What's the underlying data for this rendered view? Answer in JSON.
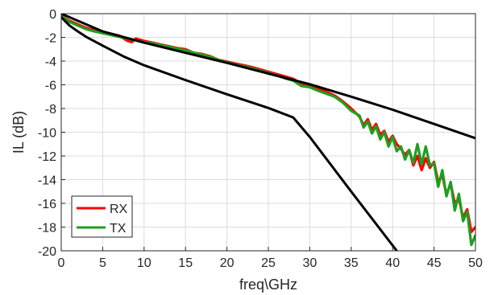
{
  "chart_data": {
    "type": "line",
    "xlabel": "freq\\GHz",
    "ylabel": "IL (dB)",
    "xlim": [
      0,
      50
    ],
    "ylim": [
      -20,
      0
    ],
    "xticks": [
      0,
      5,
      10,
      15,
      20,
      25,
      30,
      35,
      40,
      45,
      50
    ],
    "yticks": [
      0,
      -2,
      -4,
      -6,
      -8,
      -10,
      -12,
      -14,
      -16,
      -18,
      -20
    ],
    "grid": true,
    "legend_position": "bottom-left",
    "series": [
      {
        "name": "RX",
        "color": "#ff0000",
        "x": [
          0,
          1,
          2,
          3,
          4,
          5,
          6,
          7,
          8,
          8.5,
          9,
          10,
          11,
          12,
          13,
          14,
          15,
          16,
          17,
          18,
          19,
          20,
          21,
          22,
          23,
          24,
          25,
          26,
          27,
          28,
          29,
          30,
          31,
          32,
          33,
          34,
          35,
          36,
          36.5,
          37,
          37.5,
          38,
          38.5,
          39,
          39.5,
          40,
          40.5,
          41,
          41.5,
          42,
          42.5,
          43,
          43.5,
          44,
          44.5,
          45,
          45.5,
          46,
          46.5,
          47,
          47.5,
          48,
          48.5,
          49,
          49.5,
          50
        ],
        "values": [
          -0.2,
          -0.6,
          -0.9,
          -1.2,
          -1.4,
          -1.55,
          -1.7,
          -1.85,
          -2.3,
          -2.4,
          -2.1,
          -2.3,
          -2.45,
          -2.6,
          -2.75,
          -2.9,
          -3.0,
          -3.3,
          -3.4,
          -3.6,
          -3.9,
          -4.05,
          -4.2,
          -4.35,
          -4.5,
          -4.7,
          -4.9,
          -5.1,
          -5.3,
          -5.5,
          -5.9,
          -6.0,
          -6.3,
          -6.6,
          -6.9,
          -7.4,
          -8.0,
          -8.7,
          -9.4,
          -8.9,
          -9.8,
          -9.3,
          -10.2,
          -9.9,
          -10.8,
          -10.3,
          -11.0,
          -11.4,
          -11.9,
          -11.5,
          -12.8,
          -12.0,
          -13.2,
          -12.2,
          -13.0,
          -12.5,
          -14.2,
          -13.6,
          -15.3,
          -14.3,
          -16.0,
          -15.6,
          -17.2,
          -16.5,
          -18.4,
          -18.0
        ]
      },
      {
        "name": "TX",
        "color": "#1f9e1f",
        "x": [
          0,
          1,
          2,
          3,
          4,
          5,
          6,
          7,
          8,
          9,
          10,
          11,
          12,
          13,
          14,
          15,
          16,
          17,
          18,
          19,
          20,
          21,
          22,
          23,
          24,
          25,
          26,
          27,
          28,
          29,
          30,
          31,
          32,
          33,
          34,
          35,
          36,
          36.5,
          37,
          37.5,
          38,
          38.5,
          39,
          39.5,
          40,
          40.5,
          41,
          41.5,
          42,
          42.5,
          43,
          43.5,
          44,
          44.5,
          45,
          45.5,
          46,
          46.5,
          47,
          47.5,
          48,
          48.5,
          49,
          49.5,
          50
        ],
        "values": [
          -0.2,
          -0.7,
          -1.0,
          -1.3,
          -1.5,
          -1.65,
          -1.8,
          -1.95,
          -2.1,
          -2.25,
          -2.4,
          -2.5,
          -2.65,
          -2.8,
          -2.95,
          -3.1,
          -3.3,
          -3.45,
          -3.65,
          -3.9,
          -4.1,
          -4.3,
          -4.45,
          -4.6,
          -4.8,
          -5.0,
          -5.2,
          -5.45,
          -5.65,
          -6.1,
          -6.2,
          -6.5,
          -6.75,
          -7.0,
          -7.5,
          -8.2,
          -8.6,
          -9.6,
          -9.1,
          -10.1,
          -9.5,
          -10.6,
          -10.0,
          -11.2,
          -10.4,
          -11.6,
          -11.2,
          -12.3,
          -11.5,
          -12.6,
          -11.0,
          -12.7,
          -11.2,
          -12.8,
          -12.6,
          -14.6,
          -13.2,
          -15.4,
          -14.2,
          -16.6,
          -15.2,
          -17.5,
          -16.7,
          -19.5,
          -18.7
        ]
      },
      {
        "color": "#000000",
        "x": [
          0,
          5,
          10,
          15,
          20,
          25,
          30,
          35,
          40,
          45,
          50
        ],
        "values": [
          0,
          -1.5,
          -2.45,
          -3.3,
          -4.15,
          -5.05,
          -5.95,
          -7.0,
          -8.1,
          -9.3,
          -10.5
        ]
      },
      {
        "color": "#000000",
        "x": [
          0,
          1,
          2,
          3,
          5,
          7.5,
          10,
          15,
          20,
          25,
          28,
          30,
          35,
          40.5
        ],
        "values": [
          -0.3,
          -1.0,
          -1.5,
          -1.95,
          -2.7,
          -3.6,
          -4.35,
          -5.6,
          -6.8,
          -7.95,
          -8.75,
          -10.4,
          -15.0,
          -20.0
        ]
      }
    ]
  }
}
